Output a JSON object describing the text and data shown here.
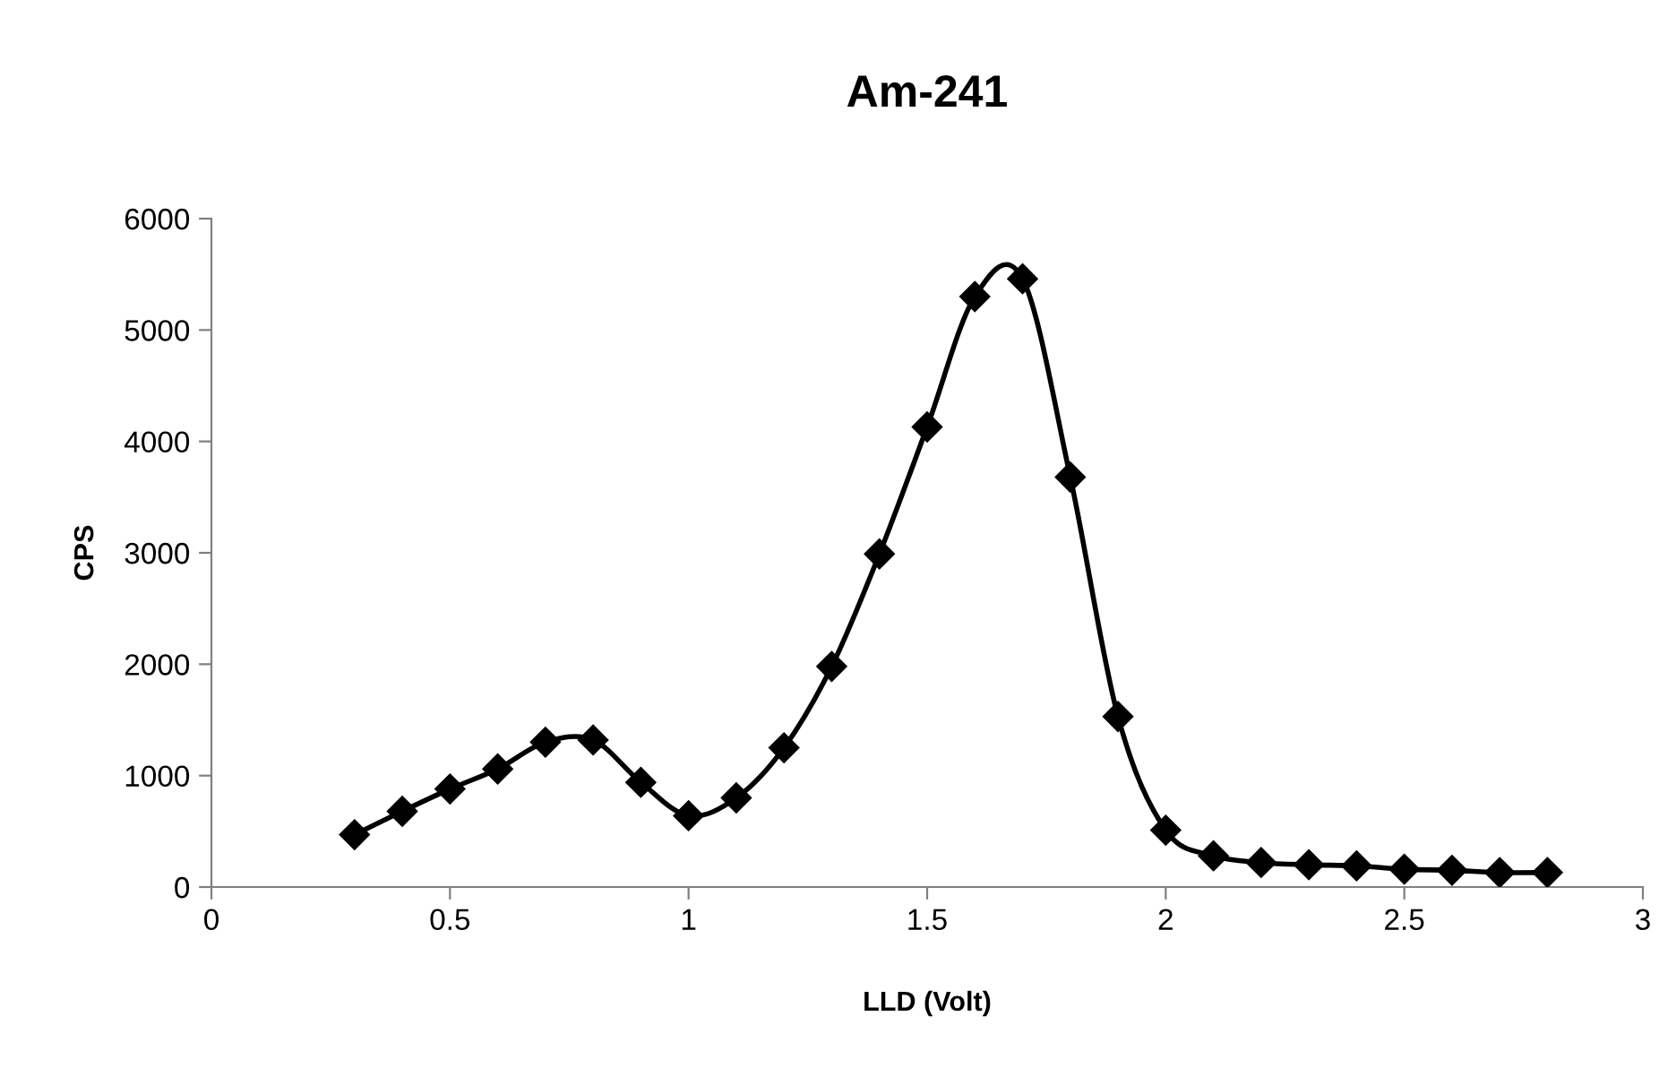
{
  "chart_data": {
    "type": "line",
    "title": "Am-241",
    "xlabel": "LLD (Volt)",
    "ylabel": "CPS",
    "x": [
      0.3,
      0.4,
      0.5,
      0.6,
      0.7,
      0.8,
      0.9,
      1.0,
      1.1,
      1.2,
      1.3,
      1.4,
      1.5,
      1.6,
      1.7,
      1.8,
      1.9,
      2.0,
      2.1,
      2.2,
      2.3,
      2.4,
      2.5,
      2.6,
      2.7,
      2.8
    ],
    "series": [
      {
        "color": "#000000",
        "values": [
          470,
          680,
          880,
          1060,
          1300,
          1320,
          940,
          640,
          800,
          1250,
          1980,
          2990,
          4130,
          5300,
          5460,
          3680,
          1530,
          510,
          280,
          220,
          200,
          190,
          160,
          150,
          130,
          130
        ]
      }
    ],
    "xlim": [
      0,
      3
    ],
    "xticks": [
      0,
      0.5,
      1,
      1.5,
      2,
      2.5,
      3
    ],
    "ylim": [
      0,
      6000
    ],
    "yticks": [
      0,
      1000,
      2000,
      3000,
      4000,
      5000,
      6000
    ],
    "grid": false,
    "legend": false,
    "marker": "diamond",
    "line_style": "solid"
  }
}
